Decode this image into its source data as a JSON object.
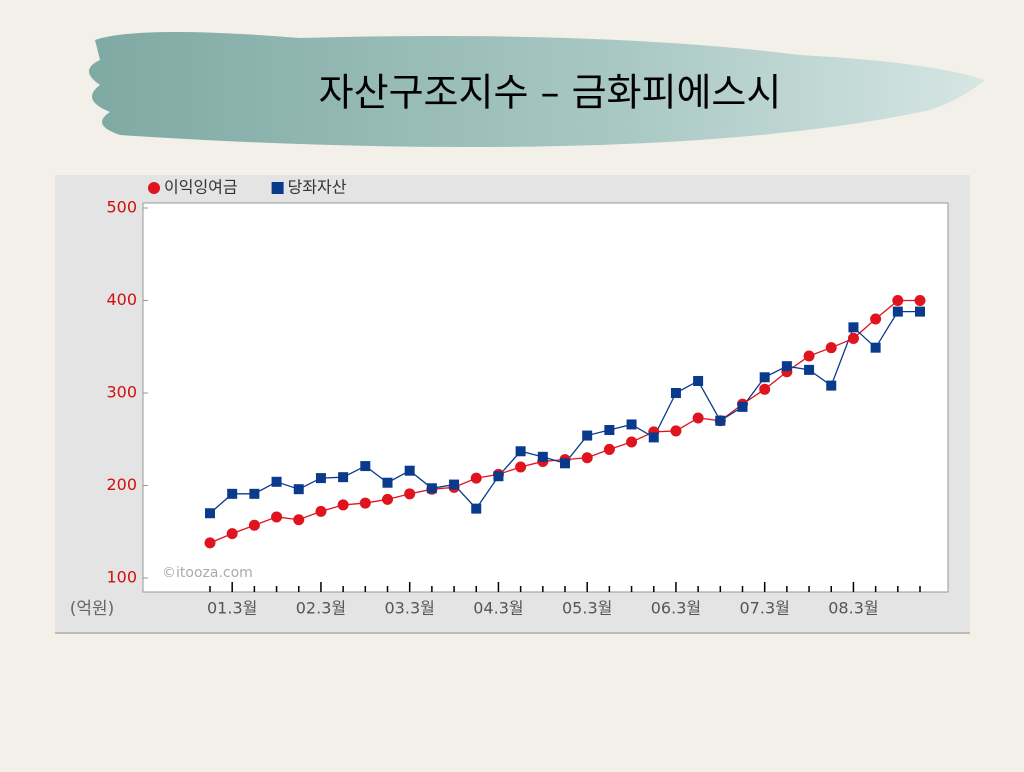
{
  "title": "자산구조지수 – 금화피에스시",
  "chart_data": {
    "type": "line",
    "y_unit": "(억원)",
    "watermark": "©itooza.com",
    "categories": [
      null,
      "01.3월",
      null,
      null,
      null,
      "02.3월",
      null,
      null,
      null,
      "03.3월",
      null,
      null,
      null,
      "04.3월",
      null,
      null,
      null,
      "05.3월",
      null,
      null,
      null,
      "06.3월",
      null,
      null,
      null,
      "07.3월",
      null,
      null,
      null,
      "08.3월",
      null,
      null,
      null
    ],
    "series": [
      {
        "name": "이익잉여금",
        "color": "#e0141e",
        "marker": "circle",
        "values": [
          138,
          148,
          157,
          166,
          163,
          172,
          179,
          181,
          185,
          191,
          196,
          198,
          208,
          212,
          220,
          226,
          228,
          230,
          239,
          247,
          258,
          259,
          273,
          270,
          288,
          304,
          323,
          340,
          349,
          359,
          380,
          400,
          400
        ]
      },
      {
        "name": "당좌자산",
        "color": "#0a3a8c",
        "marker": "square",
        "values": [
          170,
          191,
          191,
          204,
          196,
          208,
          209,
          221,
          203,
          216,
          197,
          201,
          175,
          210,
          237,
          231,
          224,
          254,
          260,
          266,
          252,
          300,
          313,
          270,
          285,
          317,
          329,
          325,
          308,
          371,
          349,
          388,
          388
        ]
      }
    ],
    "ylim": [
      100,
      500
    ],
    "yticks": [
      100,
      200,
      300,
      400,
      500
    ],
    "tick_color": "#d01010"
  }
}
